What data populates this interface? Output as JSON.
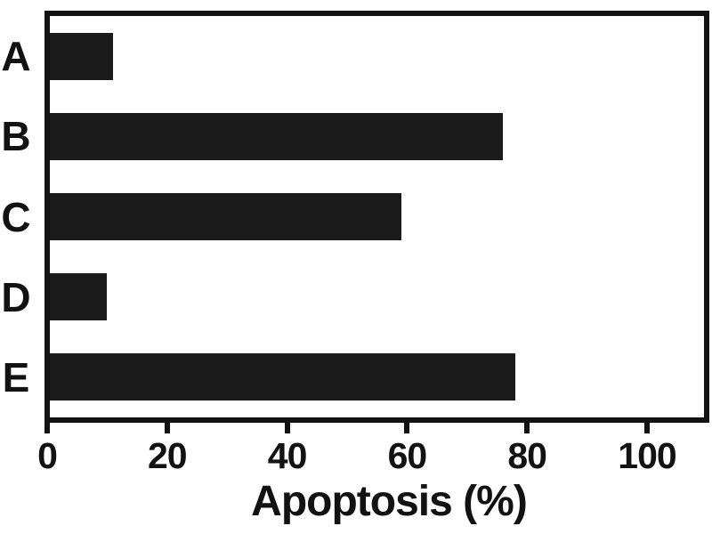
{
  "figure": {
    "background": "#ffffff",
    "frame_color": "#121212",
    "bar_color": "#1b1b1b",
    "text_color": "#121212"
  },
  "chart_data": {
    "type": "bar",
    "orientation": "horizontal",
    "title": "",
    "xlabel": "Apoptosis (%)",
    "ylabel": "",
    "categories": [
      "A",
      "B",
      "C",
      "D",
      "E"
    ],
    "values": [
      11,
      76,
      59,
      10,
      78
    ],
    "xlim": [
      0,
      110
    ],
    "xticks": [
      0,
      20,
      40,
      60,
      80,
      100
    ],
    "grid": false,
    "legend": false,
    "bar_color": "#1b1b1b"
  }
}
